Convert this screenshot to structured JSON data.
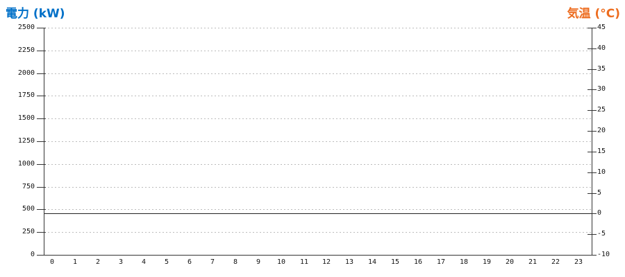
{
  "header": {
    "left_axis_title": "電力 (kW)",
    "right_axis_title": "気温 (°C)"
  },
  "colors": {
    "left_axis_title": "#0070C8",
    "right_axis_title": "#ED6C1E",
    "grid_line": "#BBBBBB",
    "axis_line": "#333333",
    "tick_label": "#111111",
    "flat_series_line": "#222222",
    "background": "#FFFFFF"
  },
  "chart_data": {
    "type": "line",
    "title": "",
    "categories": [
      "0",
      "1",
      "2",
      "3",
      "4",
      "5",
      "6",
      "7",
      "8",
      "9",
      "10",
      "11",
      "12",
      "13",
      "14",
      "15",
      "16",
      "17",
      "18",
      "19",
      "20",
      "21",
      "22",
      "23"
    ],
    "left_axis": {
      "title": "電力 (kW)",
      "min": 0,
      "max": 2500,
      "step": 250,
      "ticks": [
        0,
        250,
        500,
        750,
        1000,
        1250,
        1500,
        1750,
        2000,
        2250,
        2500
      ]
    },
    "right_axis": {
      "title": "気温 (°C)",
      "min": -10,
      "max": 45,
      "step": 5,
      "ticks": [
        -10,
        -5,
        0,
        5,
        10,
        15,
        20,
        25,
        30,
        35,
        40,
        45
      ]
    },
    "grid": "horizontal dashed lines at left-axis ticks",
    "legend": "none",
    "series": [
      {
        "name": "気温",
        "axis": "right",
        "type": "line",
        "values": [
          0,
          0,
          0,
          0,
          0,
          0,
          0,
          0,
          0,
          0,
          0,
          0,
          0,
          0,
          0,
          0,
          0,
          0,
          0,
          0,
          0,
          0,
          0,
          0
        ]
      }
    ],
    "notes": "chart is empty except a flat solid line at 0 on the right (temperature) axis"
  }
}
